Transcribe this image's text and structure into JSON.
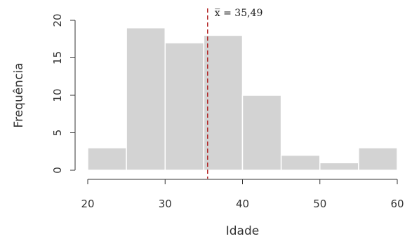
{
  "chart_data": {
    "type": "bar",
    "subtype": "histogram",
    "bins": [
      {
        "start": 20,
        "end": 25,
        "count": 3
      },
      {
        "start": 25,
        "end": 30,
        "count": 19
      },
      {
        "start": 30,
        "end": 35,
        "count": 17
      },
      {
        "start": 35,
        "end": 40,
        "count": 18
      },
      {
        "start": 40,
        "end": 45,
        "count": 10
      },
      {
        "start": 45,
        "end": 50,
        "count": 2
      },
      {
        "start": 50,
        "end": 55,
        "count": 1
      },
      {
        "start": 55,
        "end": 60,
        "count": 3
      }
    ],
    "xlabel": "Idade",
    "ylabel": "Frequência",
    "xlim": [
      20,
      60
    ],
    "ylim": [
      0,
      20
    ],
    "xticks": [
      20,
      30,
      40,
      50,
      60
    ],
    "yticks": [
      0,
      5,
      10,
      15,
      20
    ],
    "grid": false,
    "legend": "none",
    "mean": {
      "value": 35.49,
      "label": "x̅ = 35,49"
    },
    "colors": {
      "bar_fill": "#d3d3d3",
      "bar_stroke": "#ffffff",
      "axis": "#333333",
      "mean_line": "#b22222"
    }
  }
}
